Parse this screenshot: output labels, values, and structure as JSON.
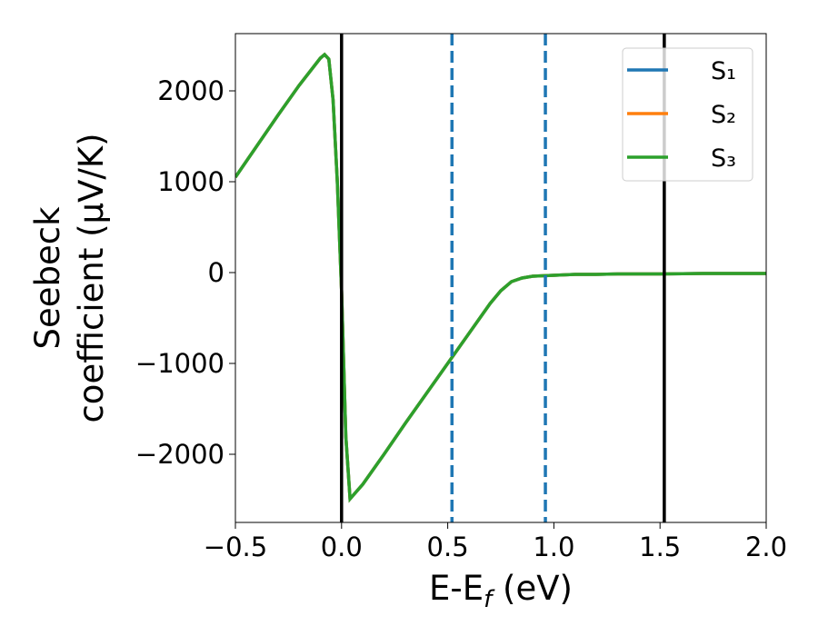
{
  "chart_data": {
    "type": "line",
    "xlabel": "E-Ef (eV)",
    "ylabel": [
      "Seebeck",
      "coefficient  (μV/K)"
    ],
    "x": [
      -0.5,
      -0.4,
      -0.3,
      -0.2,
      -0.1,
      -0.08,
      -0.06,
      -0.04,
      -0.02,
      0,
      0.02,
      0.04,
      0.1,
      0.2,
      0.3,
      0.4,
      0.5,
      0.6,
      0.7,
      0.75,
      0.8,
      0.85,
      0.9,
      1.0,
      1.1,
      1.2,
      1.3,
      1.5,
      1.7,
      2.0
    ],
    "series": [
      {
        "name": "S₁",
        "color": "#1f77b4",
        "values": [
          1050,
          1390,
          1730,
          2060,
          2360,
          2400,
          2350,
          1900,
          1000,
          -200,
          -1800,
          -2490,
          -2330,
          -2000,
          -1660,
          -1330,
          -1000,
          -670,
          -340,
          -200,
          -100,
          -60,
          -40,
          -30,
          -20,
          -20,
          -15,
          -15,
          -10,
          -10
        ]
      },
      {
        "name": "S₂",
        "color": "#ff7f0e",
        "values": [
          1050,
          1390,
          1730,
          2060,
          2360,
          2400,
          2350,
          1900,
          1000,
          -200,
          -1800,
          -2490,
          -2330,
          -2000,
          -1660,
          -1330,
          -1000,
          -670,
          -340,
          -200,
          -100,
          -60,
          -40,
          -30,
          -20,
          -20,
          -15,
          -15,
          -10,
          -10
        ]
      },
      {
        "name": "S₃",
        "color": "#2ca02c",
        "values": [
          1050,
          1390,
          1730,
          2060,
          2360,
          2400,
          2350,
          1900,
          1000,
          -200,
          -1800,
          -2490,
          -2330,
          -2000,
          -1660,
          -1330,
          -1000,
          -670,
          -340,
          -200,
          -100,
          -60,
          -40,
          -30,
          -20,
          -20,
          -15,
          -15,
          -10,
          -10
        ]
      }
    ],
    "vlines": [
      {
        "x": 0,
        "color": "#000000",
        "style": "solid"
      },
      {
        "x": 1.52,
        "color": "#000000",
        "style": "solid"
      },
      {
        "x": 0.52,
        "color": "#1f77b4",
        "style": "dashed"
      },
      {
        "x": 0.96,
        "color": "#1f77b4",
        "style": "dashed"
      }
    ],
    "xlim": [
      -0.5,
      2.0
    ],
    "xticks": [
      {
        "value": -0.5,
        "label": "−0.5"
      },
      {
        "value": 0,
        "label": "0.0"
      },
      {
        "value": 0.5,
        "label": "0.5"
      },
      {
        "value": 1,
        "label": "1.0"
      },
      {
        "value": 1.5,
        "label": "1.5"
      },
      {
        "value": 2,
        "label": "2.0"
      }
    ],
    "ylim": [
      -2750,
      2630
    ],
    "yticks": [
      {
        "value": -2000,
        "label": "−2000"
      },
      {
        "value": -1000,
        "label": "−1000"
      },
      0,
      1000,
      2000
    ],
    "legend": "upper right"
  }
}
